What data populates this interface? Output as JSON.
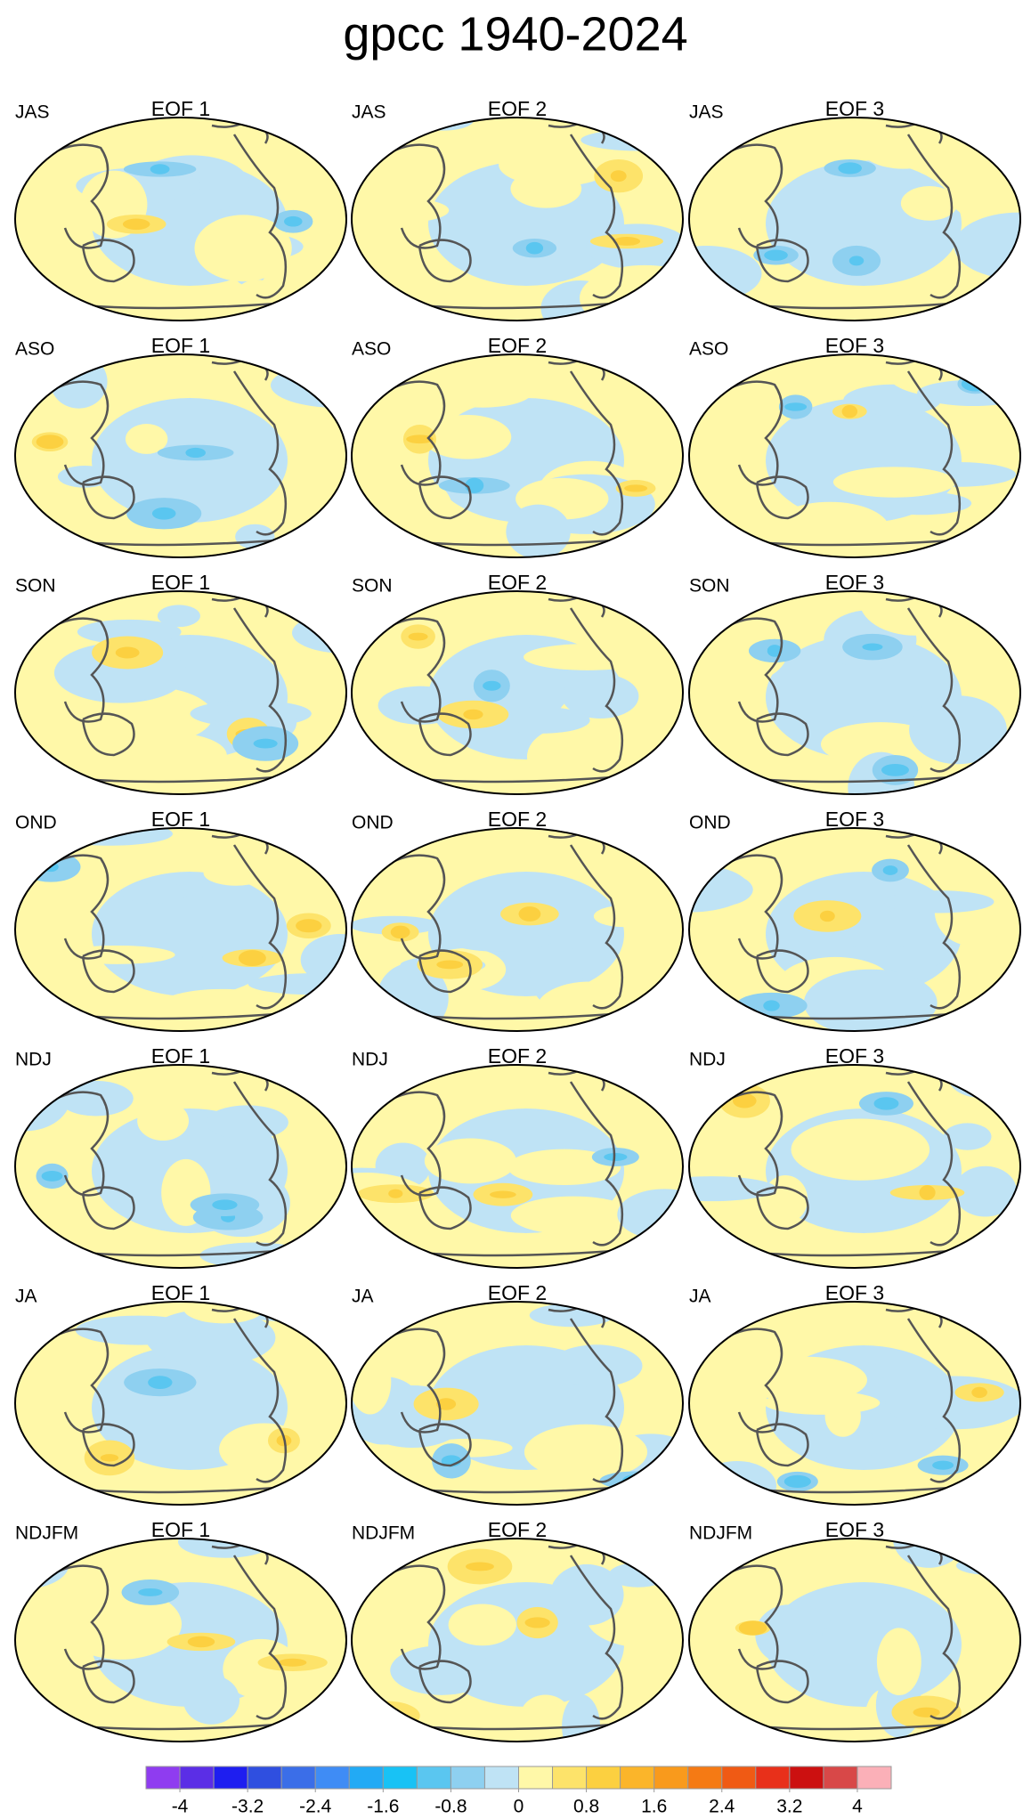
{
  "title": "gpcc 1940-2024",
  "panels": [
    {
      "season": "JAS",
      "eof": "EOF 1"
    },
    {
      "season": "JAS",
      "eof": "EOF 2"
    },
    {
      "season": "JAS",
      "eof": "EOF 3"
    },
    {
      "season": "ASO",
      "eof": "EOF 1"
    },
    {
      "season": "ASO",
      "eof": "EOF 2"
    },
    {
      "season": "ASO",
      "eof": "EOF 3"
    },
    {
      "season": "SON",
      "eof": "EOF 1"
    },
    {
      "season": "SON",
      "eof": "EOF 2"
    },
    {
      "season": "SON",
      "eof": "EOF 3"
    },
    {
      "season": "OND",
      "eof": "EOF 1"
    },
    {
      "season": "OND",
      "eof": "EOF 2"
    },
    {
      "season": "OND",
      "eof": "EOF 3"
    },
    {
      "season": "NDJ",
      "eof": "EOF 1"
    },
    {
      "season": "NDJ",
      "eof": "EOF 2"
    },
    {
      "season": "NDJ",
      "eof": "EOF 3"
    },
    {
      "season": "JA",
      "eof": "EOF 1"
    },
    {
      "season": "JA",
      "eof": "EOF 2"
    },
    {
      "season": "JA",
      "eof": "EOF 3"
    },
    {
      "season": "NDJFM",
      "eof": "EOF 1"
    },
    {
      "season": "NDJFM",
      "eof": "EOF 2"
    },
    {
      "season": "NDJFM",
      "eof": "EOF 3"
    }
  ],
  "colorbar": {
    "lim": [
      -4.4,
      4.4
    ],
    "ticks": [
      -4,
      -3.2,
      -2.4,
      -1.6,
      -0.8,
      0,
      0.8,
      1.6,
      2.4,
      3.2,
      4
    ],
    "colors": [
      "#8f3cf0",
      "#5b2ee6",
      "#1e1ef0",
      "#2f4fe0",
      "#3b6ee8",
      "#3f8cf5",
      "#22aaf5",
      "#18c2f5",
      "#5ac6f0",
      "#8ed0f0",
      "#bfe3f5",
      "#fff8a8",
      "#fde36a",
      "#fcd040",
      "#fbb52a",
      "#f99a1c",
      "#f57a14",
      "#f05a14",
      "#e8301a",
      "#cc1010",
      "#d84848",
      "#fbb0b8"
    ]
  }
}
